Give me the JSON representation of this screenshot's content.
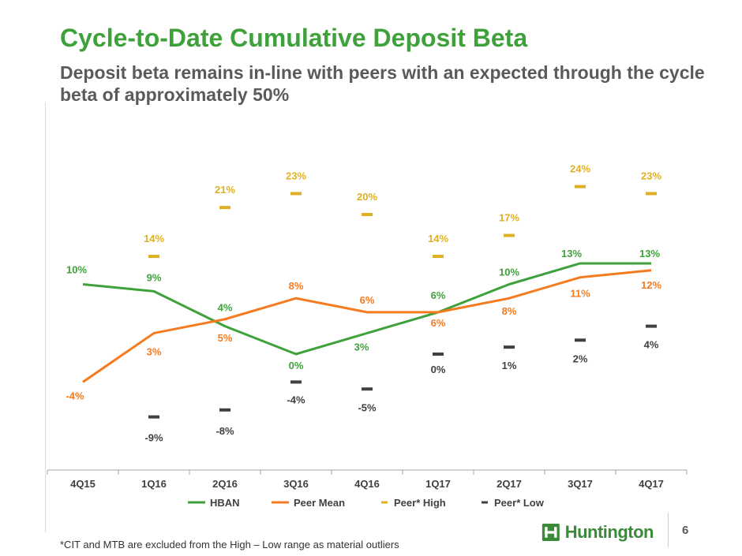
{
  "header": {
    "title": "Cycle-to-Date Cumulative Deposit Beta",
    "subtitle": "Deposit beta remains in-line with peers with an expected through the cycle beta of approximately 50%"
  },
  "colors": {
    "title": "#3fa13a",
    "hban": "#3fa13a",
    "peer_mean": "#f47b20",
    "peer_high": "#e0b024",
    "peer_low": "#404040",
    "subtitle": "#5a5a5a"
  },
  "chart_data": {
    "type": "line",
    "categories": [
      "4Q15",
      "1Q16",
      "2Q16",
      "3Q16",
      "4Q16",
      "1Q17",
      "2Q17",
      "3Q17",
      "4Q17"
    ],
    "series": [
      {
        "name": "HBAN",
        "style": "line",
        "values": [
          10,
          9,
          4,
          0,
          3,
          6,
          10,
          13,
          13
        ],
        "labels": [
          "10%",
          "9%",
          "4%",
          "0%",
          "3%",
          "6%",
          "10%",
          "13%",
          "13%"
        ]
      },
      {
        "name": "Peer Mean",
        "style": "line",
        "values": [
          -4,
          3,
          5,
          8,
          6,
          6,
          8,
          11,
          12
        ],
        "labels": [
          "-4%",
          "3%",
          "5%",
          "8%",
          "6%",
          "6%",
          "8%",
          "11%",
          "12%"
        ]
      },
      {
        "name": "Peer* High",
        "style": "dash-marker",
        "values": [
          null,
          14,
          21,
          23,
          20,
          14,
          17,
          24,
          23
        ],
        "labels": [
          null,
          "14%",
          "21%",
          "23%",
          "20%",
          "14%",
          "17%",
          "24%",
          "23%"
        ]
      },
      {
        "name": "Peer* Low",
        "style": "dash-marker",
        "values": [
          null,
          -9,
          -8,
          -4,
          -5,
          0,
          1,
          2,
          4
        ],
        "labels": [
          null,
          "-9%",
          "-8%",
          "-4%",
          "-5%",
          "0%",
          "1%",
          "2%",
          "4%"
        ]
      }
    ],
    "ylim": [
      -12,
      28
    ],
    "grid": false,
    "legend": "bottom"
  },
  "footer": {
    "footnote": "*CIT and MTB are excluded from the High – Low range as material outliers",
    "logo_text": "Huntington",
    "page_number": "6"
  }
}
